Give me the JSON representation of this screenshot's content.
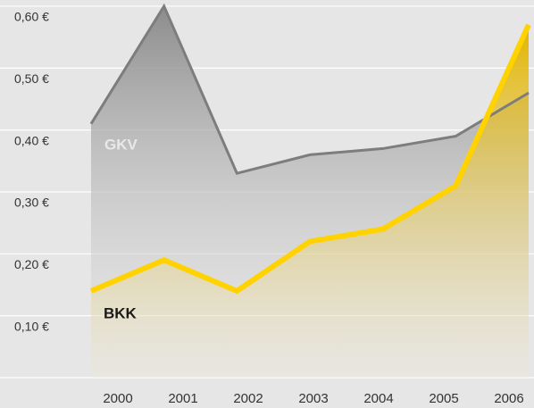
{
  "chart_data": {
    "type": "line",
    "categories": [
      "2000",
      "2001",
      "2002",
      "2003",
      "2004",
      "2005",
      "2006"
    ],
    "series": [
      {
        "name": "GKV",
        "color": "#7d7d7d",
        "values": [
          0.41,
          0.6,
          0.33,
          0.36,
          0.37,
          0.39,
          0.46
        ]
      },
      {
        "name": "BKK",
        "color": "#ffd200",
        "values": [
          0.14,
          0.19,
          0.14,
          0.22,
          0.24,
          0.31,
          0.57
        ]
      }
    ],
    "ylim": [
      0,
      0.61
    ],
    "yticks": [
      {
        "value": 0,
        "label": ""
      },
      {
        "value": 0.1,
        "label": "0,10 €"
      },
      {
        "value": 0.2,
        "label": "0,20 €"
      },
      {
        "value": 0.3,
        "label": "0,30 €"
      },
      {
        "value": 0.4,
        "label": "0,40 €"
      },
      {
        "value": 0.5,
        "label": "0,50 €"
      },
      {
        "value": 0.6,
        "label": "0,60 €"
      }
    ],
    "grid": true
  }
}
